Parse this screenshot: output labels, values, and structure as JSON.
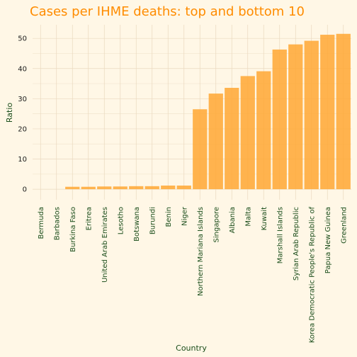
{
  "chart_data": {
    "type": "bar",
    "title": "Cases per IHME deaths: top and bottom 10",
    "xlabel": "Country",
    "ylabel": "Ratio",
    "ylim": [
      -3.5,
      54.5
    ],
    "yticks": [
      0,
      10,
      20,
      30,
      40,
      50
    ],
    "grid": true,
    "bar_color": "#ffa733",
    "categories": [
      "Bermuda",
      "Barbados",
      "Burkina Faso",
      "Eritrea",
      "United Arab Emirates",
      "Lesotho",
      "Botswana",
      "Burundi",
      "Benin",
      "Niger",
      "Northern Mariana Islands",
      "Singapore",
      "Albania",
      "Malta",
      "Kuwait",
      "Marshall Islands",
      "Syrian Arab Republic",
      "Korea Democratic People's Republic of",
      "Papua New Guinea",
      "Greenland"
    ],
    "values": [
      0,
      0,
      0.8,
      0.8,
      0.9,
      0.9,
      1.0,
      1.0,
      1.2,
      1.2,
      26.5,
      31.7,
      33.6,
      37.5,
      39.1,
      46.3,
      48.0,
      49.2,
      51.2,
      51.5
    ]
  }
}
